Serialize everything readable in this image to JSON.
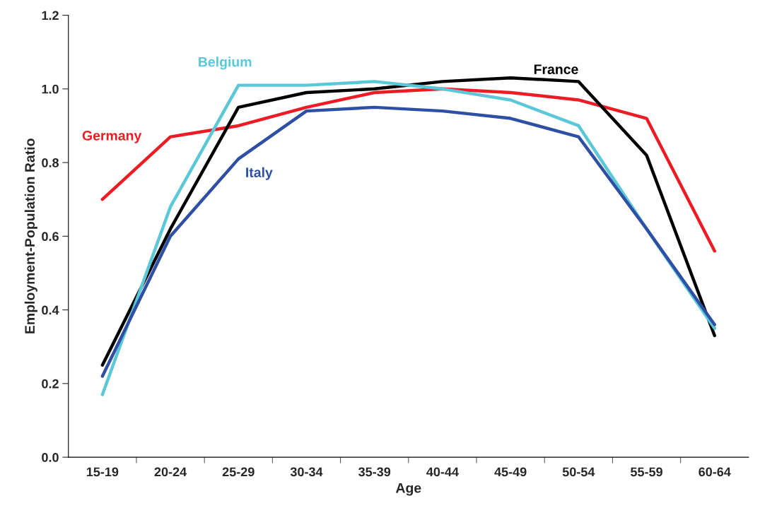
{
  "chart_data": {
    "type": "line",
    "xlabel": "Age",
    "ylabel": "Employment-Population Ratio",
    "categories": [
      "15-19",
      "20-24",
      "25-29",
      "30-34",
      "35-39",
      "40-44",
      "45-49",
      "50-54",
      "55-59",
      "60-64"
    ],
    "series": [
      {
        "name": "Germany",
        "color": "#ed1c24",
        "values": [
          0.7,
          0.87,
          0.9,
          0.95,
          0.99,
          1.0,
          0.99,
          0.97,
          0.92,
          0.56
        ]
      },
      {
        "name": "France",
        "color": "#000000",
        "values": [
          0.25,
          0.62,
          0.95,
          0.99,
          1.0,
          1.02,
          1.03,
          1.02,
          0.82,
          0.33
        ]
      },
      {
        "name": "Belgium",
        "color": "#5bc8d8",
        "values": [
          0.17,
          0.68,
          1.01,
          1.01,
          1.02,
          1.0,
          0.97,
          0.9,
          0.62,
          0.35
        ]
      },
      {
        "name": "Italy",
        "color": "#2e4fa3",
        "values": [
          0.22,
          0.6,
          0.81,
          0.94,
          0.95,
          0.94,
          0.92,
          0.87,
          0.62,
          0.36
        ]
      }
    ],
    "ylim": [
      0,
      1.2
    ],
    "yticks": [
      {
        "value": 0,
        "label": "0.0"
      },
      {
        "value": 0.2,
        "label": "0.2"
      },
      {
        "value": 0.4,
        "label": "0.4"
      },
      {
        "value": 0.6,
        "label": "0.6"
      },
      {
        "value": 0.8,
        "label": "0.8"
      },
      {
        "value": 1.0,
        "label": "1.0"
      },
      {
        "value": 1.2,
        "label": "1.2"
      }
    ],
    "grid": false,
    "legend": false,
    "marker": "none",
    "line_style": "solid"
  }
}
